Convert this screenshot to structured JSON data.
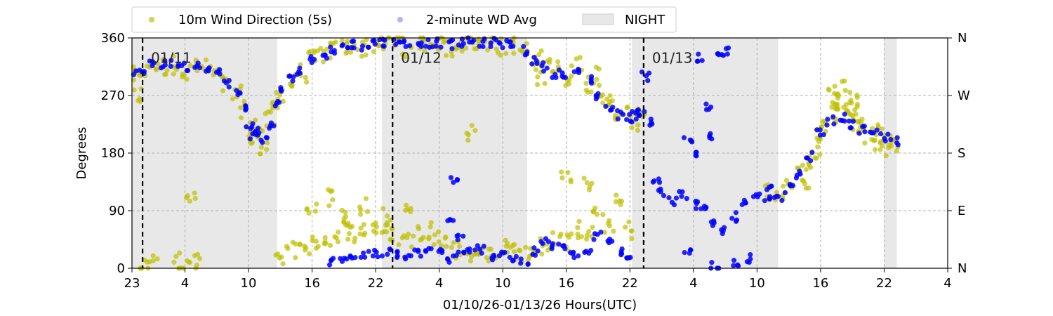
{
  "chart_data": {
    "type": "scatter",
    "xlabel": "01/10/26-01/13/26  Hours(UTC)",
    "ylabel": "Degrees",
    "x_unit": "hours since 01/10 23:00 UTC",
    "xlim": [
      0,
      77
    ],
    "ylim": [
      0,
      360
    ],
    "x_tick_values": [
      0,
      5,
      11,
      17,
      23,
      29,
      35,
      41,
      47,
      53,
      59,
      65,
      71,
      77
    ],
    "x_tick_labels": [
      "23",
      "4",
      "10",
      "16",
      "22",
      "4",
      "10",
      "16",
      "22",
      "4",
      "10",
      "16",
      "22",
      "4"
    ],
    "y_ticks": [
      0,
      90,
      180,
      270,
      360
    ],
    "y_tick_labels": [
      "0",
      "90",
      "180",
      "270",
      "360"
    ],
    "right_axis_labels": [
      {
        "value": 0,
        "label": "N"
      },
      {
        "value": 90,
        "label": "E"
      },
      {
        "value": 180,
        "label": "S"
      },
      {
        "value": 270,
        "label": "W"
      },
      {
        "value": 360,
        "label": "N"
      }
    ],
    "grid": true,
    "legend_placement": "top (above plot)",
    "day_markers": [
      {
        "x": 1,
        "label": "01/11"
      },
      {
        "x": 24.6,
        "label": "01/12"
      },
      {
        "x": 48.3,
        "label": "01/13"
      }
    ],
    "night_periods": [
      [
        0,
        13.7
      ],
      [
        23.6,
        37.3
      ],
      [
        47.2,
        61.0
      ],
      [
        71.0,
        72.2
      ]
    ],
    "series": [
      {
        "name": "10m Wind Direction (5s)",
        "color": "#bfbf00",
        "points": [
          [
            0,
            300
          ],
          [
            0.5,
            270
          ],
          [
            1,
            305
          ],
          [
            2,
            320
          ],
          [
            3,
            315
          ],
          [
            4,
            318
          ],
          [
            5,
            310
          ],
          [
            6,
            315
          ],
          [
            7,
            312
          ],
          [
            8,
            300
          ],
          [
            9,
            285
          ],
          [
            10,
            270
          ],
          [
            10.5,
            250
          ],
          [
            11,
            215
          ],
          [
            11.5,
            200
          ],
          [
            12,
            220
          ],
          [
            12.5,
            190
          ],
          [
            13,
            230
          ],
          [
            13.5,
            250
          ],
          [
            14,
            275
          ],
          [
            15,
            290
          ],
          [
            16,
            305
          ],
          [
            17,
            325
          ],
          [
            18,
            335
          ],
          [
            19,
            340
          ],
          [
            20,
            345
          ],
          [
            21,
            350
          ],
          [
            22,
            345
          ],
          [
            23,
            350
          ],
          [
            24,
            352
          ],
          [
            25,
            355
          ],
          [
            26,
            345
          ],
          [
            27,
            355
          ],
          [
            28,
            350
          ],
          [
            29,
            355
          ],
          [
            30,
            345
          ],
          [
            31,
            352
          ],
          [
            32,
            355
          ],
          [
            33,
            350
          ],
          [
            34,
            355
          ],
          [
            35,
            345
          ],
          [
            36,
            350
          ],
          [
            37,
            340
          ],
          [
            38,
            320
          ],
          [
            38.5,
            300
          ],
          [
            39,
            330
          ],
          [
            40,
            310
          ],
          [
            41,
            300
          ],
          [
            42,
            320
          ],
          [
            43,
            290
          ],
          [
            44,
            300
          ],
          [
            44.5,
            260
          ],
          [
            45,
            270
          ],
          [
            46,
            230
          ],
          [
            47,
            240
          ],
          [
            47.5,
            230
          ],
          [
            48,
            245
          ],
          [
            1,
            3
          ],
          [
            2,
            5
          ],
          [
            4,
            10
          ],
          [
            5,
            5
          ],
          [
            6,
            8
          ],
          [
            5.5,
            105
          ],
          [
            14,
            20
          ],
          [
            15,
            30
          ],
          [
            16,
            40
          ],
          [
            17,
            35
          ],
          [
            18,
            45
          ],
          [
            19,
            50
          ],
          [
            20,
            60
          ],
          [
            21,
            55
          ],
          [
            22,
            62
          ],
          [
            23,
            65
          ],
          [
            24,
            55
          ],
          [
            25,
            50
          ],
          [
            26,
            45
          ],
          [
            27,
            55
          ],
          [
            28,
            60
          ],
          [
            29,
            50
          ],
          [
            30,
            40
          ],
          [
            31,
            30
          ],
          [
            32,
            25
          ],
          [
            33,
            20
          ],
          [
            34,
            25
          ],
          [
            35,
            30
          ],
          [
            36,
            28
          ],
          [
            37,
            20
          ],
          [
            38,
            30
          ],
          [
            39,
            35
          ],
          [
            40,
            45
          ],
          [
            41,
            40
          ],
          [
            42,
            60
          ],
          [
            43,
            55
          ],
          [
            44,
            80
          ],
          [
            45,
            70
          ],
          [
            46,
            100
          ],
          [
            47,
            60
          ],
          [
            17,
            90
          ],
          [
            20,
            80
          ],
          [
            24,
            80
          ],
          [
            26,
            90
          ],
          [
            32,
            215
          ],
          [
            41,
            140
          ],
          [
            43,
            130
          ],
          [
            19,
            110
          ],
          [
            22,
            95
          ],
          [
            60,
            120
          ],
          [
            61,
            115
          ],
          [
            62,
            130
          ],
          [
            63,
            150
          ],
          [
            64,
            170
          ],
          [
            65,
            205
          ],
          [
            66,
            240
          ],
          [
            67,
            255
          ],
          [
            68,
            245
          ],
          [
            69,
            225
          ],
          [
            70,
            215
          ],
          [
            71,
            205
          ],
          [
            72,
            195
          ],
          [
            63.5,
            140
          ],
          [
            64.5,
            185
          ],
          [
            66.5,
            265
          ],
          [
            67.5,
            250
          ],
          [
            68.5,
            230
          ],
          [
            69.5,
            210
          ],
          [
            70.5,
            200
          ],
          [
            71.5,
            190
          ],
          [
            65.5,
            230
          ],
          [
            66,
            270
          ],
          [
            67,
            280
          ],
          [
            68,
            260
          ]
        ]
      },
      {
        "name": "2-minute WD Avg",
        "color": "#0000ff",
        "points": [
          [
            0,
            305
          ],
          [
            1,
            310
          ],
          [
            2,
            322
          ],
          [
            3,
            318
          ],
          [
            4,
            320
          ],
          [
            5,
            315
          ],
          [
            6,
            318
          ],
          [
            7,
            315
          ],
          [
            8,
            305
          ],
          [
            9,
            290
          ],
          [
            10,
            272
          ],
          [
            10.5,
            250
          ],
          [
            11,
            225
          ],
          [
            11.5,
            205
          ],
          [
            12,
            215
          ],
          [
            12.5,
            200
          ],
          [
            13,
            225
          ],
          [
            13.5,
            255
          ],
          [
            14,
            280
          ],
          [
            15,
            295
          ],
          [
            16,
            310
          ],
          [
            17,
            325
          ],
          [
            18,
            335
          ],
          [
            19,
            342
          ],
          [
            20,
            347
          ],
          [
            21,
            350
          ],
          [
            22,
            348
          ],
          [
            23,
            352
          ],
          [
            24,
            353
          ],
          [
            25,
            355
          ],
          [
            26,
            350
          ],
          [
            27,
            353
          ],
          [
            28,
            352
          ],
          [
            29,
            352
          ],
          [
            30,
            350
          ],
          [
            31,
            352
          ],
          [
            32,
            354
          ],
          [
            33,
            352
          ],
          [
            34,
            353
          ],
          [
            35,
            350
          ],
          [
            36,
            350
          ],
          [
            37,
            340
          ],
          [
            38,
            325
          ],
          [
            39,
            315
          ],
          [
            40,
            305
          ],
          [
            41,
            300
          ],
          [
            42,
            305
          ],
          [
            43,
            295
          ],
          [
            44,
            270
          ],
          [
            45,
            250
          ],
          [
            46,
            240
          ],
          [
            47,
            235
          ],
          [
            47.5,
            240
          ],
          [
            48,
            245
          ],
          [
            48.5,
            300
          ],
          [
            49,
            230
          ],
          [
            19,
            10
          ],
          [
            20,
            15
          ],
          [
            21,
            18
          ],
          [
            22,
            20
          ],
          [
            23,
            22
          ],
          [
            24,
            25
          ],
          [
            25,
            20
          ],
          [
            26,
            15
          ],
          [
            27,
            25
          ],
          [
            28,
            30
          ],
          [
            29,
            25
          ],
          [
            30,
            15
          ],
          [
            31,
            20
          ],
          [
            32,
            25
          ],
          [
            33,
            30
          ],
          [
            34,
            20
          ],
          [
            35,
            25
          ],
          [
            36,
            15
          ],
          [
            37,
            10
          ],
          [
            38,
            25
          ],
          [
            39,
            40
          ],
          [
            40,
            35
          ],
          [
            41,
            30
          ],
          [
            42,
            20
          ],
          [
            43,
            25
          ],
          [
            44,
            50
          ],
          [
            45,
            40
          ],
          [
            46,
            25
          ],
          [
            47,
            15
          ],
          [
            30.5,
            140
          ],
          [
            30,
            80
          ],
          [
            31,
            50
          ],
          [
            49.5,
            140
          ],
          [
            50,
            120
          ],
          [
            51,
            105
          ],
          [
            52,
            115
          ],
          [
            53,
            100
          ],
          [
            54,
            90
          ],
          [
            55,
            70
          ],
          [
            56,
            60
          ],
          [
            57,
            80
          ],
          [
            58,
            100
          ],
          [
            59,
            110
          ],
          [
            60,
            105
          ],
          [
            61,
            110
          ],
          [
            62,
            125
          ],
          [
            63,
            145
          ],
          [
            64,
            175
          ],
          [
            65,
            210
          ],
          [
            66,
            230
          ],
          [
            67,
            235
          ],
          [
            68,
            225
          ],
          [
            69,
            215
          ],
          [
            70,
            210
          ],
          [
            71,
            205
          ],
          [
            72,
            198
          ],
          [
            52.5,
            200
          ],
          [
            53.5,
            175
          ],
          [
            54.5,
            205
          ],
          [
            55.5,
            335
          ],
          [
            53.5,
            330
          ],
          [
            52.5,
            25
          ],
          [
            55,
            5
          ],
          [
            57,
            10
          ],
          [
            58,
            15
          ],
          [
            54.5,
            250
          ],
          [
            56,
            340
          ],
          [
            60,
            125
          ]
        ]
      }
    ]
  },
  "legend": {
    "series1_label": "10m Wind Direction (5s)",
    "series2_label": "2-minute WD Avg",
    "night_label": "NIGHT"
  },
  "colors": {
    "wd5s": "#bfbf00",
    "wd2min": "#0000ff",
    "night": "#e8e8e8",
    "grid": "#b0b0b0",
    "day_line": "#000000"
  }
}
